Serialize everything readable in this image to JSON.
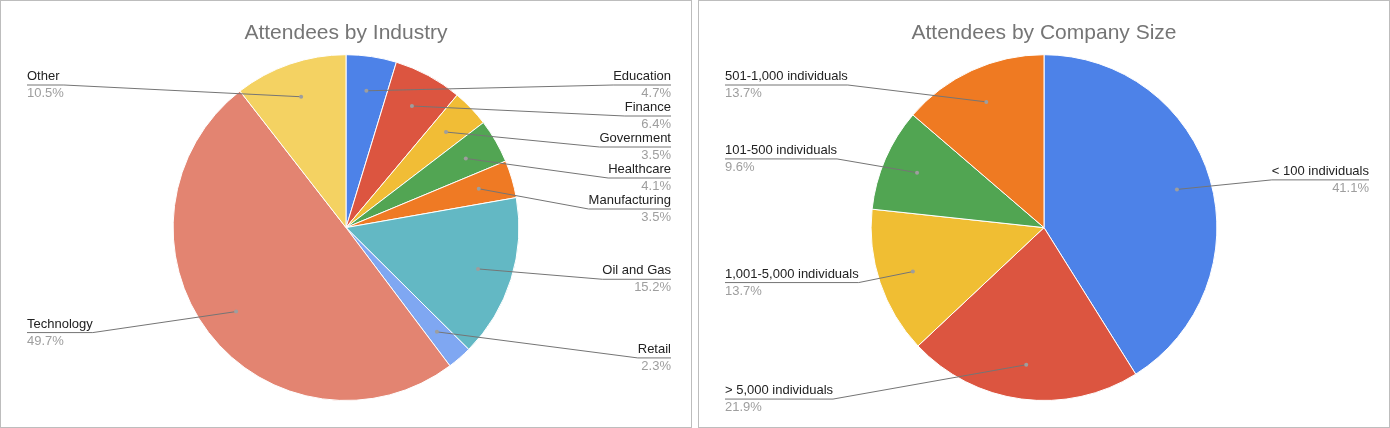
{
  "chart_data": [
    {
      "type": "pie",
      "title": "Attendees by Industry",
      "categories": [
        "Education",
        "Finance",
        "Government",
        "Healthcare",
        "Manufacturing",
        "Oil and Gas",
        "Retail",
        "Technology",
        "Other"
      ],
      "values": [
        4.7,
        6.4,
        3.5,
        4.1,
        3.5,
        15.2,
        2.3,
        49.7,
        10.5
      ],
      "value_labels": [
        "4.7%",
        "6.4%",
        "3.5%",
        "4.1%",
        "3.5%",
        "15.2%",
        "2.3%",
        "49.7%",
        "10.5%"
      ],
      "colors": [
        "#4d82e8",
        "#dc5540",
        "#f1bd36",
        "#52a553",
        "#ef7a24",
        "#63b8c4",
        "#7fa7f2",
        "#e38471",
        "#f4d262"
      ],
      "legend": false
    },
    {
      "type": "pie",
      "title": "Attendees by Company Size",
      "categories": [
        "< 100 individuals",
        "> 5,000 individuals",
        "1,001-5,000 individuals",
        "101-500 individuals",
        "501-1,000 individuals"
      ],
      "values": [
        41.1,
        21.9,
        13.7,
        9.6,
        13.7
      ],
      "value_labels": [
        "41.1%",
        "21.9%",
        "13.7%",
        "9.6%",
        "13.7%"
      ],
      "colors": [
        "#4d82e8",
        "#dc5540",
        "#f0be33",
        "#51a552",
        "#ef7a22"
      ],
      "legend": false
    }
  ]
}
